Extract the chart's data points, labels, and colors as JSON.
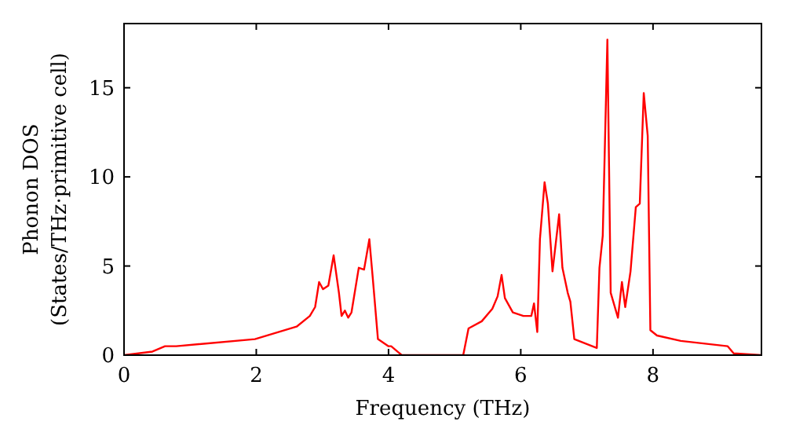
{
  "chart_data": {
    "type": "line",
    "xlabel": "Frequency (THz)",
    "ylabel": "Phonon DOS\n(States/THz·primitive cell)",
    "xlim": [
      0,
      9.64
    ],
    "ylim": [
      0,
      18.6
    ],
    "xticks": [
      0,
      2,
      4,
      6,
      8
    ],
    "yticks": [
      0,
      5,
      10,
      15
    ],
    "grid": false,
    "marker": "none",
    "line_style": "solid",
    "series": [
      {
        "color": "#ff0000",
        "x": [
          0,
          0.43,
          0.62,
          0.79,
          1.98,
          2.61,
          2.81,
          2.89,
          2.95,
          3.01,
          3.09,
          3.17,
          3.25,
          3.29,
          3.34,
          3.39,
          3.44,
          3.55,
          3.63,
          3.71,
          3.76,
          3.84,
          4.0,
          4.04,
          4.2,
          5.13,
          5.21,
          5.41,
          5.57,
          5.65,
          5.71,
          5.76,
          5.88,
          6.04,
          6.16,
          6.2,
          6.25,
          6.29,
          6.36,
          6.41,
          6.48,
          6.58,
          6.63,
          6.71,
          6.75,
          6.81,
          7.15,
          7.19,
          7.24,
          7.31,
          7.36,
          7.47,
          7.53,
          7.58,
          7.66,
          7.74,
          7.8,
          7.86,
          7.92,
          7.96,
          8.06,
          8.42,
          9.13,
          9.22,
          9.64
        ],
        "values": [
          0,
          0.2,
          0.5,
          0.5,
          0.9,
          1.6,
          2.2,
          2.7,
          4.1,
          3.7,
          3.9,
          5.6,
          3.5,
          2.2,
          2.5,
          2.1,
          2.4,
          4.9,
          4.8,
          6.5,
          4.4,
          0.9,
          0.5,
          0.5,
          0,
          0,
          1.5,
          1.9,
          2.6,
          3.3,
          4.5,
          3.2,
          2.4,
          2.2,
          2.2,
          2.9,
          1.3,
          6.5,
          9.7,
          8.5,
          4.7,
          7.9,
          4.9,
          3.5,
          3,
          0.9,
          0.4,
          4.9,
          6.7,
          17.7,
          3.5,
          2.1,
          4.1,
          2.7,
          4.7,
          8.3,
          8.5,
          14.7,
          12.3,
          1.4,
          1.1,
          0.8,
          0.5,
          0.1,
          0
        ]
      }
    ]
  }
}
